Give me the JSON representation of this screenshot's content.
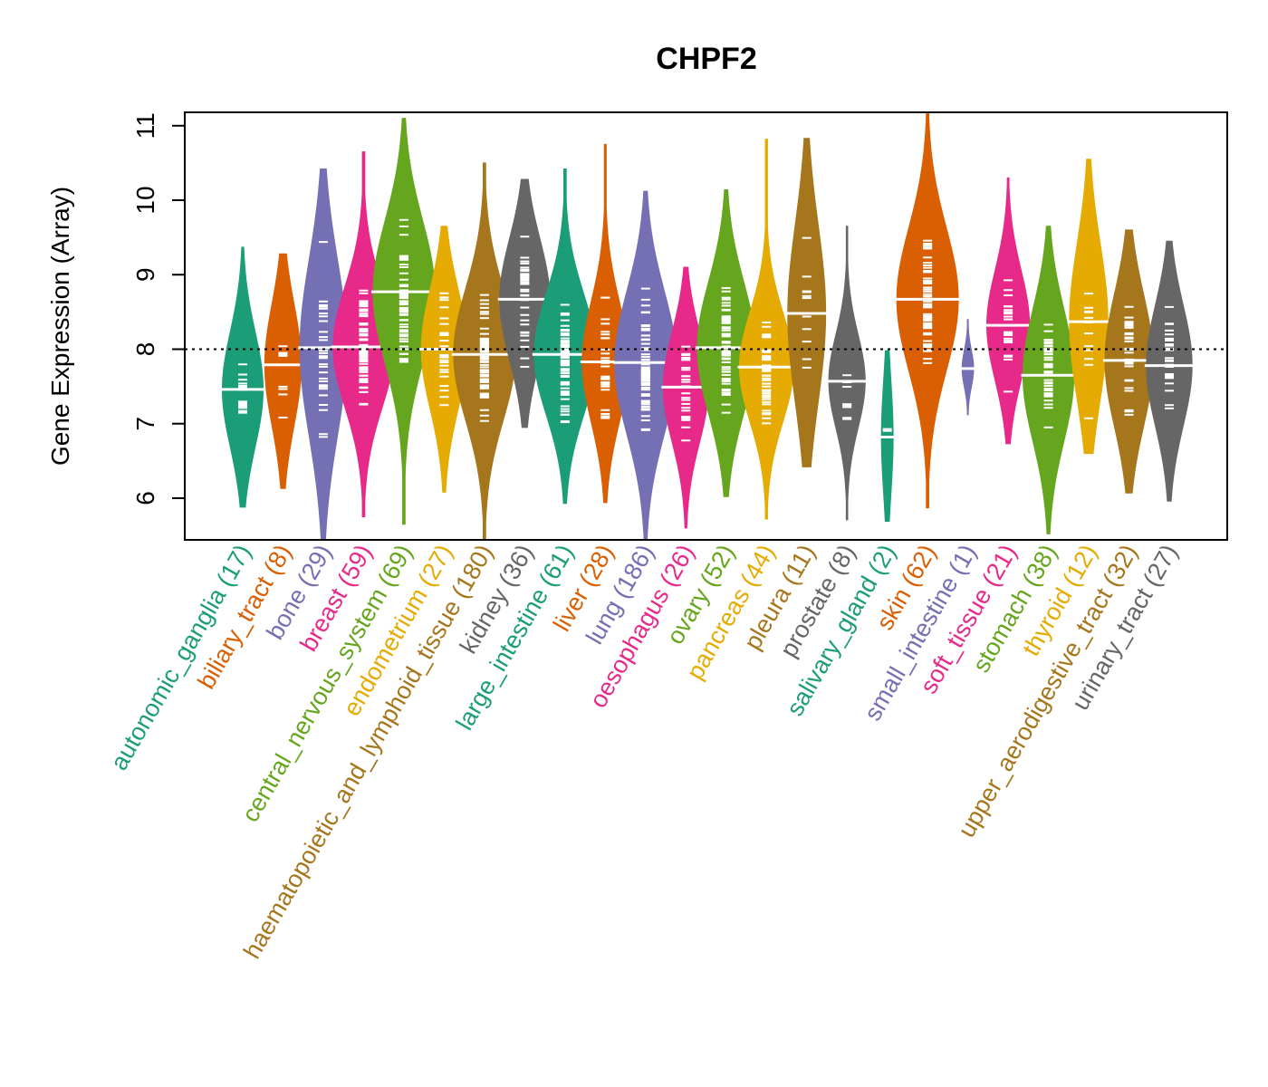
{
  "chart_data": {
    "type": "violin",
    "title": "CHPF2",
    "xlabel": "",
    "ylabel": "Gene Expression (Array)",
    "ylim": [
      5.44,
      11.18
    ],
    "yticks": [
      6,
      7,
      8,
      9,
      10,
      11
    ],
    "reference_line": 8.0,
    "grid": false,
    "categories": [
      {
        "name": "autonomic_ganglia",
        "n": 17,
        "label": "autonomic_ganglia (17)",
        "color": "#1B9E77",
        "median": 7.46,
        "min": 5.88,
        "max": 9.37,
        "q1": 6.95,
        "q3": 8.0
      },
      {
        "name": "biliary_tract",
        "n": 8,
        "label": "biliary_tract (8)",
        "color": "#D95F02",
        "median": 7.79,
        "min": 6.13,
        "max": 9.28,
        "q1": 7.2,
        "q3": 8.3
      },
      {
        "name": "bone",
        "n": 29,
        "label": "bone (29)",
        "color": "#7570B3",
        "median": 8.02,
        "min": 5.44,
        "max": 10.42,
        "q1": 7.3,
        "q3": 8.9
      },
      {
        "name": "breast",
        "n": 59,
        "label": "breast (59)",
        "color": "#E7298A",
        "median": 8.03,
        "min": 5.75,
        "max": 10.65,
        "q1": 7.5,
        "q3": 8.6
      },
      {
        "name": "central_nervous_system",
        "n": 69,
        "label": "central_nervous_system (69)",
        "color": "#66A61E",
        "median": 8.77,
        "min": 5.65,
        "max": 11.1,
        "q1": 8.05,
        "q3": 9.35
      },
      {
        "name": "endometrium",
        "n": 27,
        "label": "endometrium (27)",
        "color": "#E6AB02",
        "median": 8.0,
        "min": 6.08,
        "max": 9.65,
        "q1": 7.5,
        "q3": 8.6
      },
      {
        "name": "haematopoietic_and_lymphoid_tissue",
        "n": 180,
        "label": "haematopoietic_and_lymphoid_tissue (180)",
        "color": "#A6761D",
        "median": 7.93,
        "min": 5.44,
        "max": 10.5,
        "q1": 7.3,
        "q3": 8.5
      },
      {
        "name": "kidney",
        "n": 36,
        "label": "kidney (36)",
        "color": "#666666",
        "median": 8.67,
        "min": 6.95,
        "max": 10.28,
        "q1": 8.1,
        "q3": 9.2
      },
      {
        "name": "large_intestine",
        "n": 61,
        "label": "large_intestine (61)",
        "color": "#1B9E77",
        "median": 7.93,
        "min": 5.93,
        "max": 10.42,
        "q1": 7.3,
        "q3": 8.4
      },
      {
        "name": "liver",
        "n": 28,
        "label": "liver (28)",
        "color": "#D95F02",
        "median": 7.83,
        "min": 5.94,
        "max": 10.75,
        "q1": 7.3,
        "q3": 8.4
      },
      {
        "name": "lung",
        "n": 186,
        "label": "lung (186)",
        "color": "#7570B3",
        "median": 7.82,
        "min": 5.44,
        "max": 10.12,
        "q1": 7.2,
        "q3": 8.5
      },
      {
        "name": "oesophagus",
        "n": 26,
        "label": "oesophagus (26)",
        "color": "#E7298A",
        "median": 7.49,
        "min": 5.6,
        "max": 9.1,
        "q1": 7.0,
        "q3": 8.0
      },
      {
        "name": "ovary",
        "n": 52,
        "label": "ovary (52)",
        "color": "#66A61E",
        "median": 8.02,
        "min": 6.02,
        "max": 10.14,
        "q1": 7.4,
        "q3": 8.6
      },
      {
        "name": "pancreas",
        "n": 44,
        "label": "pancreas (44)",
        "color": "#E6AB02",
        "median": 7.76,
        "min": 5.72,
        "max": 10.82,
        "q1": 7.2,
        "q3": 8.2
      },
      {
        "name": "pleura",
        "n": 11,
        "label": "pleura (11)",
        "color": "#A6761D",
        "median": 8.48,
        "min": 6.42,
        "max": 10.83,
        "q1": 7.8,
        "q3": 9.4
      },
      {
        "name": "prostate",
        "n": 8,
        "label": "prostate (8)",
        "color": "#666666",
        "median": 7.57,
        "min": 5.71,
        "max": 9.65,
        "q1": 7.1,
        "q3": 7.95
      },
      {
        "name": "salivary_gland",
        "n": 2,
        "label": "salivary_gland (2)",
        "color": "#1B9E77",
        "median": 6.82,
        "min": 5.69,
        "max": 7.98,
        "q1": 6.3,
        "q3": 7.35
      },
      {
        "name": "skin",
        "n": 62,
        "label": "skin (62)",
        "color": "#D95F02",
        "median": 8.67,
        "min": 5.87,
        "max": 11.18,
        "q1": 8.0,
        "q3": 9.3
      },
      {
        "name": "small_intestine",
        "n": 1,
        "label": "small_intestine (1)",
        "color": "#7570B3",
        "median": 7.74,
        "min": 7.12,
        "max": 8.4,
        "q1": 7.74,
        "q3": 7.74
      },
      {
        "name": "soft_tissue",
        "n": 21,
        "label": "soft_tissue (21)",
        "color": "#E7298A",
        "median": 8.32,
        "min": 6.73,
        "max": 10.3,
        "q1": 7.8,
        "q3": 8.8
      },
      {
        "name": "stomach",
        "n": 38,
        "label": "stomach (38)",
        "color": "#66A61E",
        "median": 7.65,
        "min": 5.52,
        "max": 9.65,
        "q1": 7.1,
        "q3": 8.3
      },
      {
        "name": "thyroid",
        "n": 12,
        "label": "thyroid (12)",
        "color": "#E6AB02",
        "median": 8.37,
        "min": 6.6,
        "max": 10.55,
        "q1": 7.6,
        "q3": 9.0
      },
      {
        "name": "upper_aerodigestive_tract",
        "n": 32,
        "label": "upper_aerodigestive_tract (32)",
        "color": "#A6761D",
        "median": 7.85,
        "min": 6.07,
        "max": 9.6,
        "q1": 7.3,
        "q3": 8.5
      },
      {
        "name": "urinary_tract",
        "n": 27,
        "label": "urinary_tract (27)",
        "color": "#666666",
        "median": 7.78,
        "min": 5.96,
        "max": 9.45,
        "q1": 7.3,
        "q3": 8.4
      }
    ]
  }
}
